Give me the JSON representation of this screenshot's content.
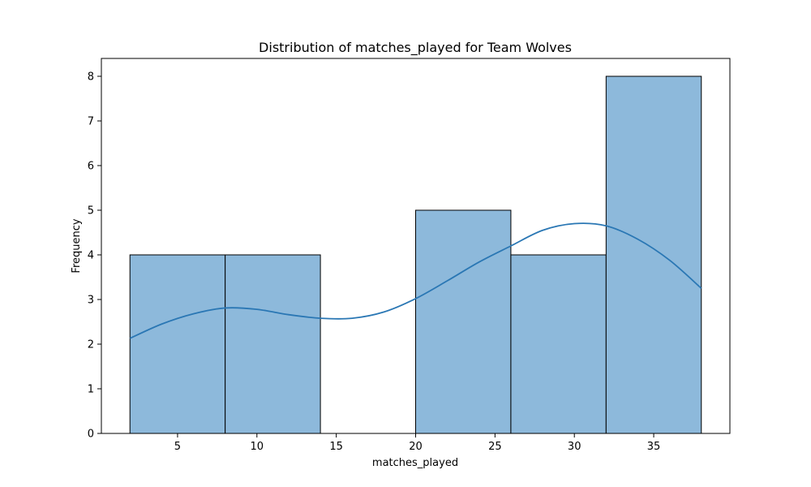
{
  "chart_data": {
    "type": "bar",
    "title": "Distribution of matches_played for Team Wolves",
    "xlabel": "matches_played",
    "ylabel": "Frequency",
    "xlim": [
      0.2,
      39.8
    ],
    "ylim": [
      0,
      8.4
    ],
    "xticks": [
      5,
      10,
      15,
      20,
      25,
      30,
      35
    ],
    "yticks": [
      0,
      1,
      2,
      3,
      4,
      5,
      6,
      7,
      8
    ],
    "grid": false,
    "bar_color": "#8db9db",
    "edge_color": "#000000",
    "kde_color": "#2a77b4",
    "bins": [
      {
        "start": 2,
        "end": 8,
        "count": 4
      },
      {
        "start": 8,
        "end": 14,
        "count": 4
      },
      {
        "start": 14,
        "end": 20,
        "count": 0
      },
      {
        "start": 20,
        "end": 26,
        "count": 5
      },
      {
        "start": 26,
        "end": 32,
        "count": 4
      },
      {
        "start": 32,
        "end": 38,
        "count": 8
      }
    ],
    "kde": [
      {
        "x": 2,
        "y": 2.13
      },
      {
        "x": 4,
        "y": 2.45
      },
      {
        "x": 6,
        "y": 2.68
      },
      {
        "x": 8,
        "y": 2.81
      },
      {
        "x": 10,
        "y": 2.78
      },
      {
        "x": 12,
        "y": 2.66
      },
      {
        "x": 14,
        "y": 2.58
      },
      {
        "x": 16,
        "y": 2.58
      },
      {
        "x": 18,
        "y": 2.72
      },
      {
        "x": 20,
        "y": 3.02
      },
      {
        "x": 22,
        "y": 3.42
      },
      {
        "x": 24,
        "y": 3.84
      },
      {
        "x": 26,
        "y": 4.2
      },
      {
        "x": 28,
        "y": 4.55
      },
      {
        "x": 30,
        "y": 4.7
      },
      {
        "x": 32,
        "y": 4.65
      },
      {
        "x": 34,
        "y": 4.35
      },
      {
        "x": 36,
        "y": 3.88
      },
      {
        "x": 38,
        "y": 3.25
      }
    ]
  }
}
